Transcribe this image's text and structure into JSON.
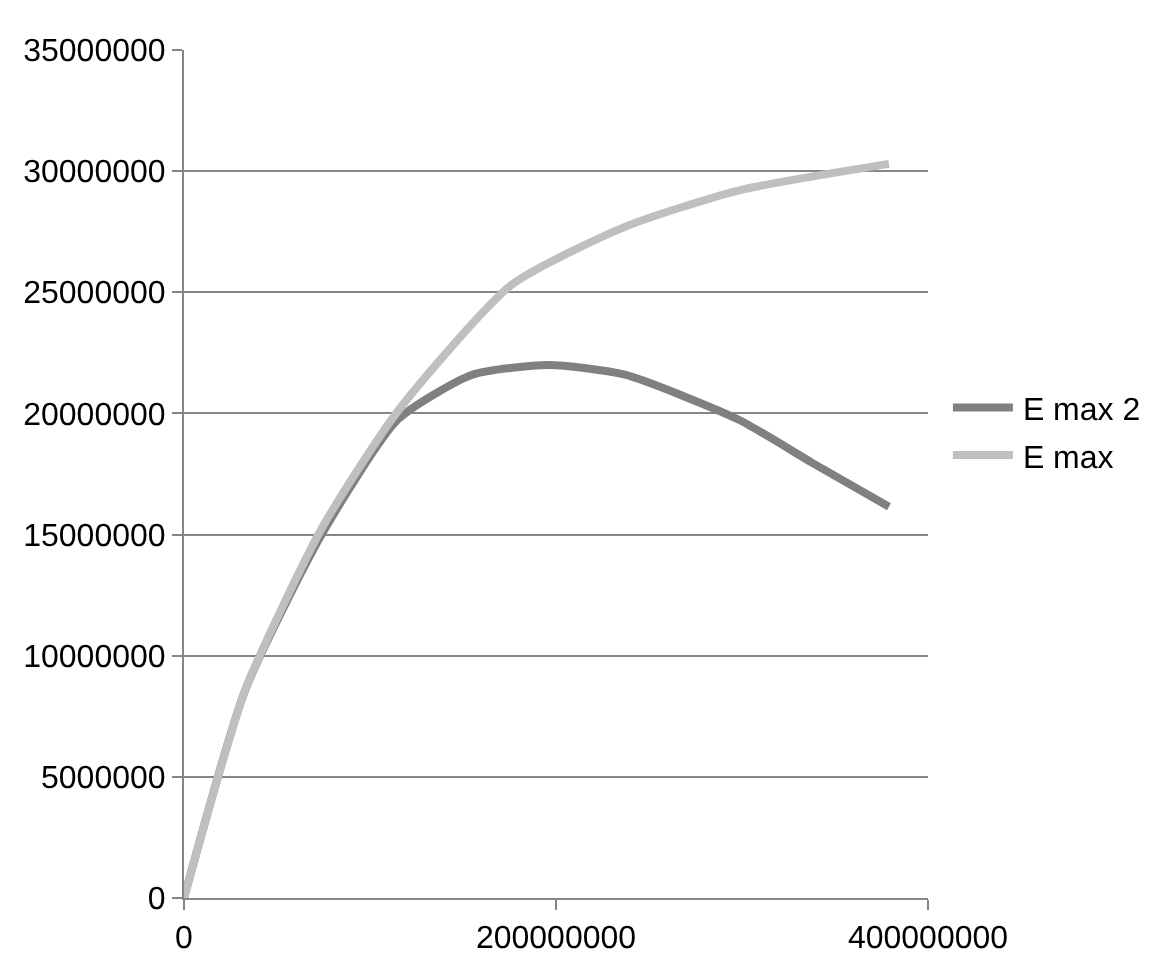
{
  "chart_data": {
    "type": "line",
    "grid": "y",
    "legend": "right",
    "marker": "none",
    "line_style": "solid",
    "xlim": [
      0,
      400000000
    ],
    "xticks": [
      0,
      200000000,
      400000000
    ],
    "ylim": [
      0,
      35000000
    ],
    "yticks": [
      0,
      5000000,
      10000000,
      15000000,
      20000000,
      25000000,
      30000000,
      35000000
    ],
    "series": [
      {
        "name": "E max 2",
        "color": "#808080",
        "x": [
          0,
          33000000,
          74000000,
          115000000,
          155000000,
          196000000,
          237000000,
          298000000,
          338000000,
          379000000
        ],
        "values": [
          0,
          8600000,
          15000000,
          19750000,
          21600000,
          22000000,
          21600000,
          19750000,
          17950000,
          16150000
        ]
      },
      {
        "name": "E max",
        "color": "#bfbfbf",
        "x": [
          0,
          33000000,
          74000000,
          115000000,
          176000000,
          237000000,
          298000000,
          379000000
        ],
        "values": [
          0,
          8600000,
          15250000,
          20100000,
          25300000,
          27700000,
          29200000,
          30300000
        ]
      }
    ]
  }
}
